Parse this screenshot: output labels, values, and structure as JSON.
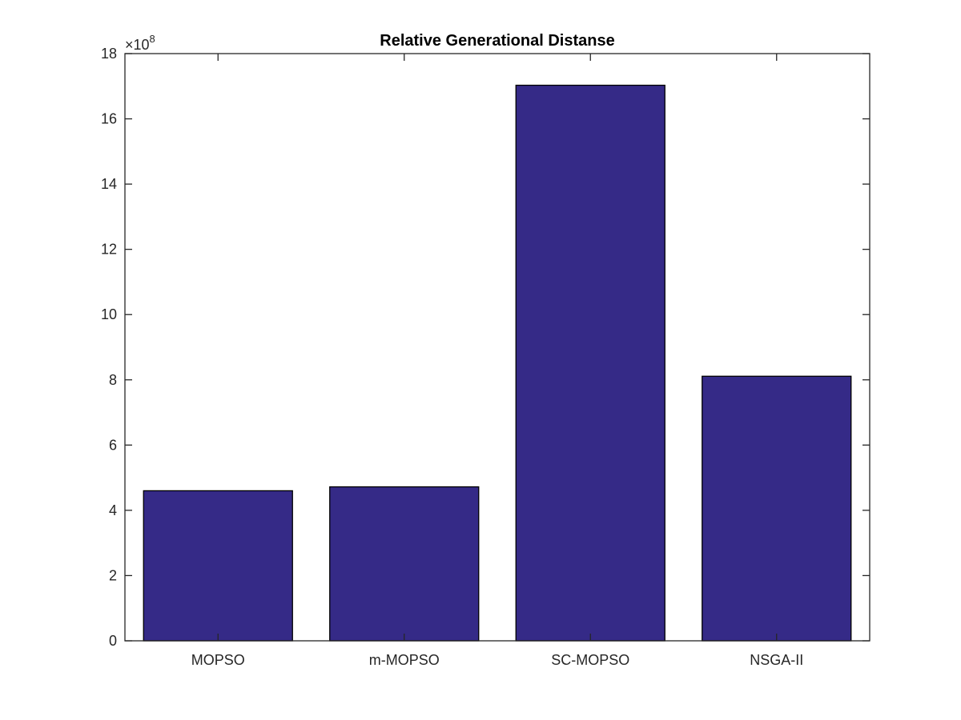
{
  "chart_data": {
    "type": "bar",
    "title": "Relative Generational Distanse",
    "xlabel": "",
    "ylabel": "",
    "categories": [
      "MOPSO",
      "m-MOPSO",
      "SC-MOPSO",
      "NSGA-II"
    ],
    "values": [
      460000000,
      472000000,
      1703000000,
      811000000
    ],
    "ylim": [
      0,
      1800000000
    ],
    "y_ticks": [
      0,
      2,
      4,
      6,
      8,
      10,
      12,
      14,
      16,
      18
    ],
    "y_exponent": {
      "times": "×10",
      "power": "8"
    },
    "bar_color": "#352A87",
    "grid": false,
    "legend": "none"
  }
}
